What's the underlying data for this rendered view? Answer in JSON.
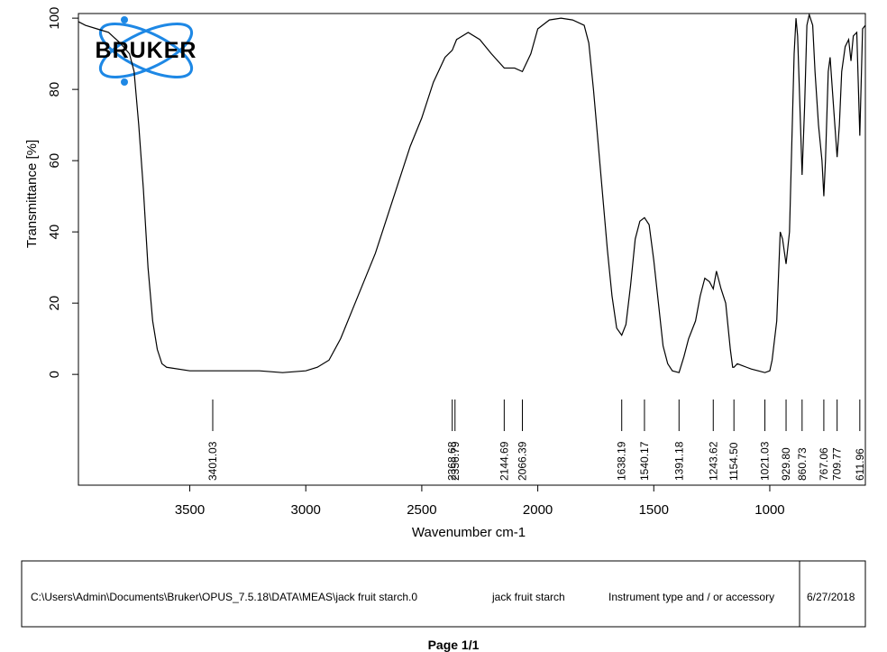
{
  "chart_data": {
    "type": "line",
    "x_label": "Wavenumber cm-1",
    "y_label": "Transmittance [%]",
    "color": "#000000",
    "xlim": [
      3980,
      588
    ],
    "ylim": [
      -31.1,
      101.3
    ],
    "xticks": [
      3500,
      3000,
      2500,
      2000,
      1500,
      1000
    ],
    "yticks": [
      0,
      20,
      40,
      60,
      80,
      100
    ],
    "x": [
      3980,
      3950,
      3900,
      3850,
      3800,
      3760,
      3740,
      3720,
      3700,
      3680,
      3660,
      3640,
      3620,
      3600,
      3500,
      3400,
      3300,
      3200,
      3100,
      3000,
      2950,
      2900,
      2850,
      2800,
      2750,
      2700,
      2650,
      2600,
      2550,
      2500,
      2450,
      2400,
      2368.68,
      2350,
      2300,
      2250,
      2200,
      2144.69,
      2100,
      2066.39,
      2030,
      2000,
      1950,
      1900,
      1850,
      1800,
      1780,
      1760,
      1740,
      1720,
      1700,
      1680,
      1660,
      1638.19,
      1620,
      1600,
      1580,
      1560,
      1540.17,
      1520,
      1500,
      1480,
      1460,
      1440,
      1420,
      1391.18,
      1370,
      1350,
      1320,
      1300,
      1280,
      1260,
      1243.62,
      1230,
      1210,
      1190,
      1170,
      1160,
      1154.5,
      1140,
      1120,
      1100,
      1080,
      1050,
      1021.03,
      1000,
      990,
      970,
      955,
      945,
      929.8,
      915,
      905,
      895,
      887,
      880,
      870,
      860.73,
      850,
      840,
      830,
      815,
      805,
      790,
      775,
      767.06,
      760,
      748,
      740,
      725,
      709.77,
      700,
      690,
      675,
      660,
      650,
      640,
      625,
      611.96,
      600,
      588
    ],
    "values": [
      99,
      98,
      97,
      96,
      93,
      90,
      85,
      70,
      52,
      30,
      15,
      7,
      3,
      2,
      1,
      1,
      1,
      1,
      0.5,
      1,
      2,
      4,
      10,
      18,
      26,
      34,
      44,
      54,
      64,
      72,
      82,
      89,
      91,
      94,
      96,
      94,
      90,
      86,
      86,
      85,
      90,
      97,
      99.5,
      100,
      99.5,
      98,
      93,
      80,
      65,
      50,
      35,
      22,
      13,
      11,
      14,
      25,
      38,
      43,
      44,
      42,
      32,
      20,
      8,
      3,
      1,
      0.5,
      5,
      10,
      15,
      22,
      27,
      26,
      24,
      29,
      24,
      20,
      7,
      2,
      2,
      3,
      2.5,
      2,
      1.5,
      1,
      0.5,
      1,
      4,
      15,
      40,
      38,
      31,
      40,
      65,
      90,
      100,
      95,
      75,
      56,
      75,
      98,
      101,
      98,
      85,
      70,
      60,
      50,
      60,
      85,
      89,
      75,
      61,
      70,
      85,
      92,
      94,
      88,
      95,
      96,
      67,
      97,
      98
    ],
    "peak_labels": [
      3401.03,
      2368.68,
      2356.79,
      2144.69,
      2066.39,
      1638.19,
      1540.17,
      1391.18,
      1243.62,
      {
        "value": 1154.5,
        "label": "1154.50"
      },
      1021.03,
      {
        "value": 929.8,
        "label": "929.80"
      },
      860.73,
      767.06,
      709.77,
      611.96
    ]
  },
  "logo": "BRUKER",
  "footer": {
    "path": "C:\\Users\\Admin\\Documents\\Bruker\\OPUS_7.5.18\\DATA\\MEAS\\jack fruit starch.0",
    "sample": "jack fruit starch",
    "instrument": "Instrument type and / or accessory",
    "date": "6/27/2018"
  },
  "page_label": "Page 1/1"
}
